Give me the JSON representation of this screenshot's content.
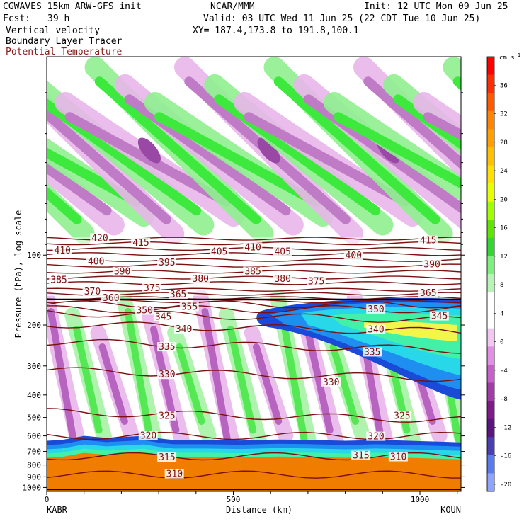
{
  "header": {
    "model": "CGWAVES 15km ARW-GFS init",
    "center": "NCAR/MMM",
    "init": "Init: 12 UTC Mon 09 Jun 25",
    "fcst_label": "Fcst:",
    "fcst_value": "39 h",
    "valid": "Valid: 03 UTC Wed 11 Jun 25 (22 CDT Tue 10 Jun 25)",
    "field1": "Vertical velocity",
    "field2": "Boundary Layer Tracer",
    "field3": "Potential Temperature",
    "xy": "XY= 187.4,173.8 to 191.8,100.1"
  },
  "colors": {
    "theta": "#7b1010",
    "field3_text": "#8b1a1a",
    "tracer": [
      "#1a4ad8",
      "#1e8ff0",
      "#28d8e8",
      "#42f0a8",
      "#f07d00"
    ]
  },
  "chart_data": {
    "type": "cross-section",
    "xlabel": "Distance (km)",
    "ylabel": "Pressure (hPa), log scale",
    "xlim": [
      0,
      1110
    ],
    "ylim": [
      1040,
      14
    ],
    "y_scale": "log",
    "x_ticks": [
      0,
      500,
      1000
    ],
    "x_tick_labels": [
      "0",
      "500",
      "1000"
    ],
    "endpoint_left": "KABR",
    "endpoint_right": "KOUN",
    "y_ticks": [
      100,
      200,
      300,
      400,
      500,
      600,
      700,
      800,
      900,
      1000
    ],
    "y_tick_labels": [
      "100",
      "200",
      "300",
      "400",
      "500",
      "600",
      "700",
      "800",
      "900",
      "1000"
    ],
    "colorbar": {
      "unit": "cm s",
      "unit_exp": "-1",
      "ticks": [
        36,
        32,
        28,
        24,
        20,
        16,
        12,
        8,
        4,
        0,
        -4,
        -8,
        -12,
        -16,
        -20
      ],
      "colors": [
        "#ff0000",
        "#ff2e00",
        "#ff5a00",
        "#ff8400",
        "#ffa000",
        "#ffc000",
        "#ffe000",
        "#e8ff00",
        "#a0ff00",
        "#5ee600",
        "#33d633",
        "#7ef07e",
        "#b6f5b6",
        "#ffffff",
        "#ffffff",
        "#f3c6f3",
        "#e290e6",
        "#c860cc",
        "#a23aa8",
        "#7e1a8a",
        "#5a1580",
        "#4a3fb0",
        "#5a7af0",
        "#8fa4ff"
      ]
    },
    "theta_contours": [
      {
        "value": 310,
        "p": 880,
        "label_x": 320
      },
      {
        "value": 315,
        "p": 735,
        "label_x": 300
      },
      {
        "value": 320,
        "p": 600,
        "label_x": 240
      },
      {
        "value": 325,
        "p": 490,
        "label_x": 300
      },
      {
        "value": 330,
        "p": 325,
        "label_x": 300
      },
      {
        "value": 335,
        "p": 245,
        "label_x": 300
      },
      {
        "value": 340,
        "p": 205,
        "label_x": 330
      },
      {
        "value": 345,
        "p": 183,
        "label_x": 280
      },
      {
        "value": 350,
        "p": 171,
        "label_x": 240
      },
      {
        "value": 355,
        "p": 163,
        "label_x": 350
      },
      {
        "value": 360,
        "p": 158,
        "label_x": 150
      },
      {
        "value": 365,
        "p": 153,
        "label_x": 280
      },
      {
        "value": 370,
        "p": 147,
        "label_x": 100
      },
      {
        "value": 375,
        "p": 141,
        "label_x": 260
      },
      {
        "value": 380,
        "p": 132,
        "label_x": 390
      },
      {
        "value": 385,
        "p": 125,
        "label_x": 10
      },
      {
        "value": 390,
        "p": 118,
        "label_x": 180
      },
      {
        "value": 395,
        "p": 111,
        "label_x": 300
      },
      {
        "value": 400,
        "p": 105,
        "label_x": 110
      },
      {
        "value": 405,
        "p": 99,
        "label_x": 420
      },
      {
        "value": 410,
        "p": 94,
        "label_x": 20
      },
      {
        "value": 415,
        "p": 89,
        "label_x": 230
      },
      {
        "value": 420,
        "p": 85,
        "label_x": 120
      }
    ],
    "theta_labels": [
      {
        "text": "420",
        "x": 120,
        "p": 84
      },
      {
        "text": "415",
        "x": 230,
        "p": 88
      },
      {
        "text": "415",
        "x": 1000,
        "p": 86
      },
      {
        "text": "410",
        "x": 20,
        "p": 95
      },
      {
        "text": "410",
        "x": 530,
        "p": 92
      },
      {
        "text": "405",
        "x": 440,
        "p": 96
      },
      {
        "text": "405",
        "x": 610,
        "p": 96
      },
      {
        "text": "400",
        "x": 110,
        "p": 106
      },
      {
        "text": "400",
        "x": 800,
        "p": 100
      },
      {
        "text": "395",
        "x": 300,
        "p": 107
      },
      {
        "text": "390",
        "x": 180,
        "p": 117
      },
      {
        "text": "390",
        "x": 1010,
        "p": 109
      },
      {
        "text": "385",
        "x": 10,
        "p": 127
      },
      {
        "text": "385",
        "x": 530,
        "p": 117
      },
      {
        "text": "380",
        "x": 390,
        "p": 126
      },
      {
        "text": "380",
        "x": 610,
        "p": 126
      },
      {
        "text": "375",
        "x": 260,
        "p": 138
      },
      {
        "text": "375",
        "x": 700,
        "p": 129
      },
      {
        "text": "370",
        "x": 100,
        "p": 143
      },
      {
        "text": "365",
        "x": 330,
        "p": 147
      },
      {
        "text": "365",
        "x": 1000,
        "p": 145
      },
      {
        "text": "360",
        "x": 150,
        "p": 152
      },
      {
        "text": "355",
        "x": 360,
        "p": 166
      },
      {
        "text": "350",
        "x": 240,
        "p": 172
      },
      {
        "text": "350",
        "x": 860,
        "p": 170
      },
      {
        "text": "345",
        "x": 290,
        "p": 183
      },
      {
        "text": "345",
        "x": 1030,
        "p": 182
      },
      {
        "text": "340",
        "x": 345,
        "p": 207
      },
      {
        "text": "340",
        "x": 860,
        "p": 208
      },
      {
        "text": "335",
        "x": 300,
        "p": 247
      },
      {
        "text": "335",
        "x": 850,
        "p": 260
      },
      {
        "text": "330",
        "x": 300,
        "p": 325
      },
      {
        "text": "330",
        "x": 740,
        "p": 350
      },
      {
        "text": "325",
        "x": 300,
        "p": 490
      },
      {
        "text": "325",
        "x": 930,
        "p": 490
      },
      {
        "text": "320",
        "x": 250,
        "p": 595
      },
      {
        "text": "320",
        "x": 860,
        "p": 600
      },
      {
        "text": "315",
        "x": 300,
        "p": 738
      },
      {
        "text": "315",
        "x": 820,
        "p": 725
      },
      {
        "text": "310",
        "x": 320,
        "p": 870
      },
      {
        "text": "310",
        "x": 920,
        "p": 735
      }
    ]
  }
}
